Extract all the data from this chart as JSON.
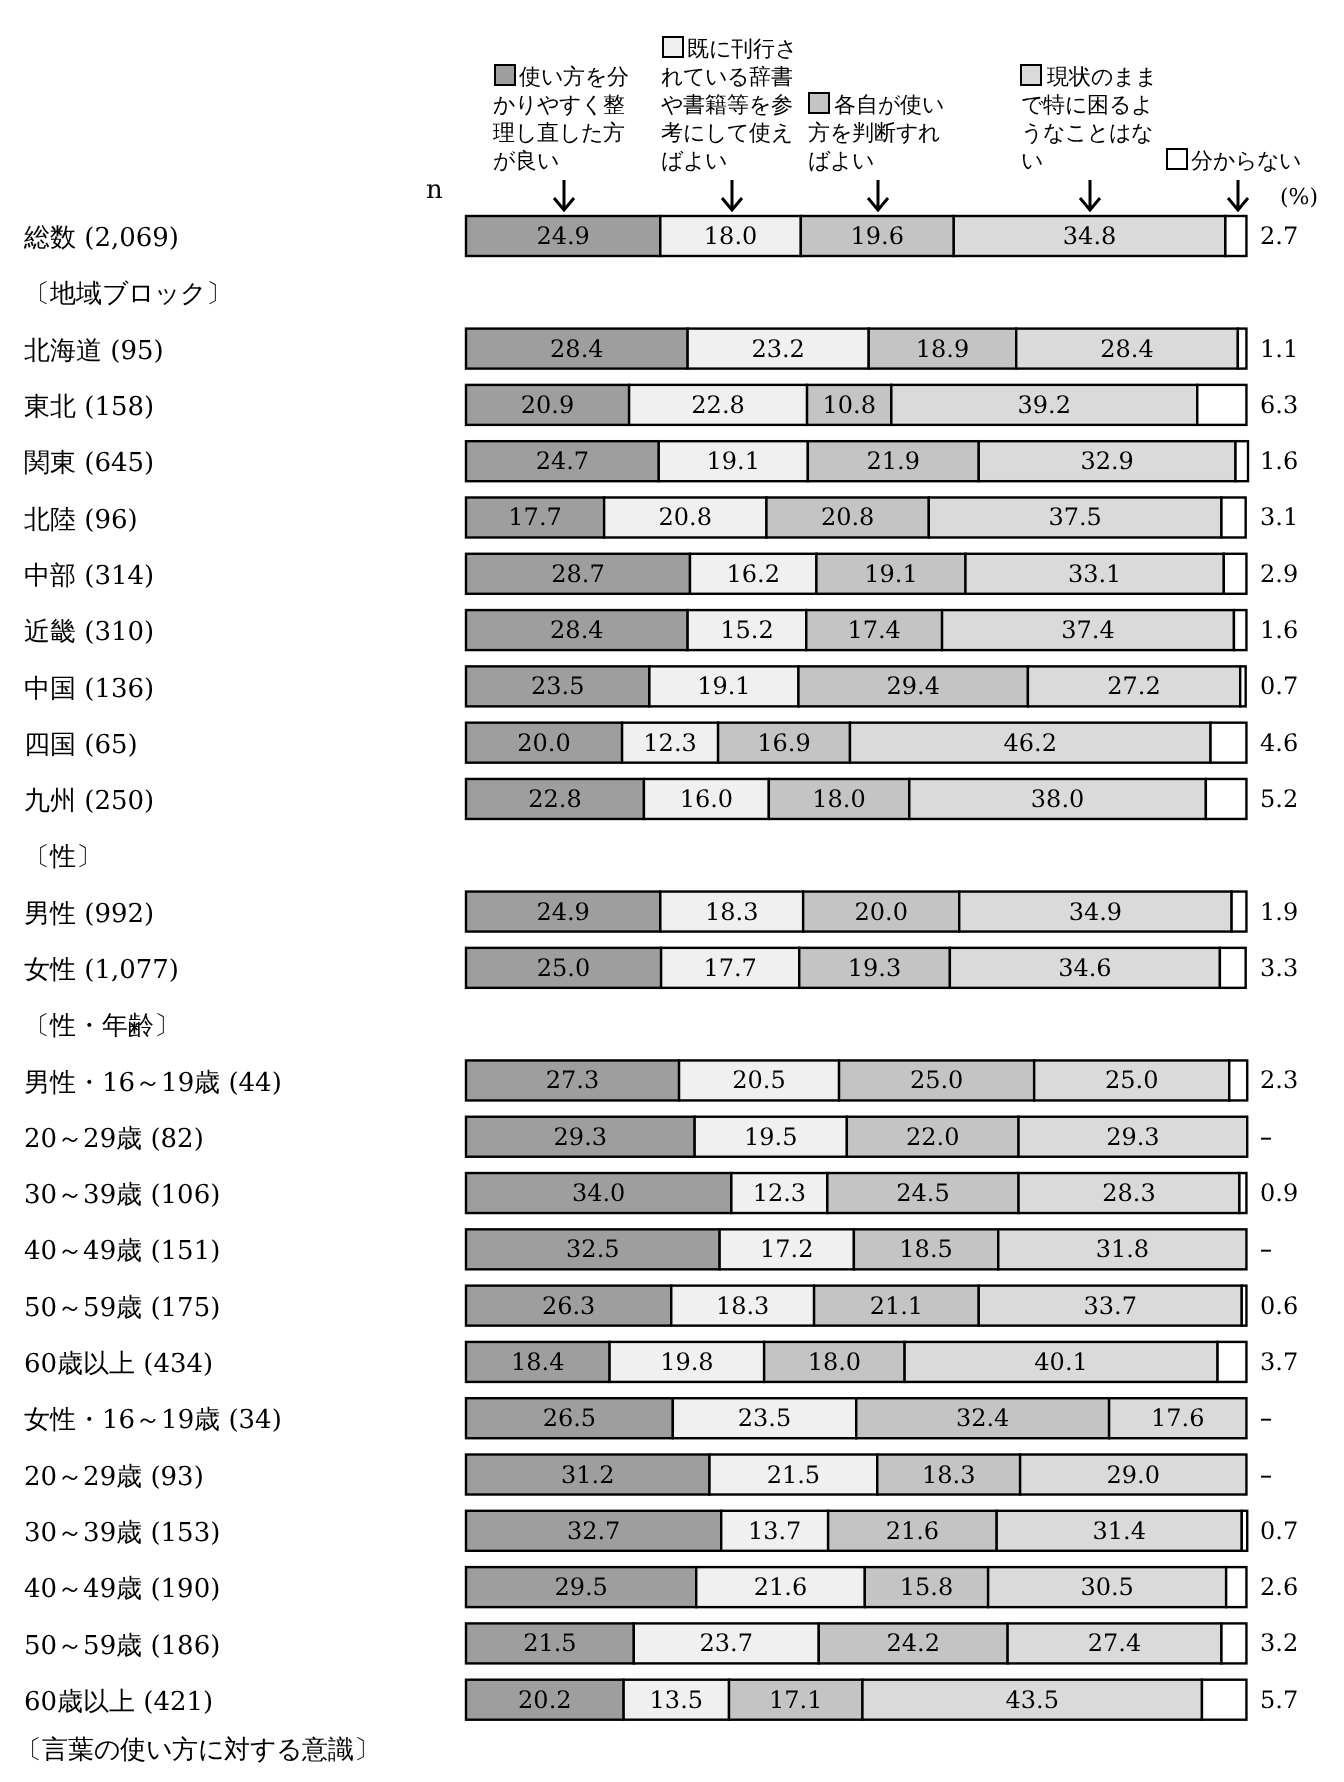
{
  "chart_data": {
    "type": "bar",
    "orientation": "horizontal",
    "stacked": true,
    "title": "〔言葉の使い方に対する意識〕",
    "annotations": [
      "n",
      "(%)"
    ],
    "categories": [
      "総数 (2,069)",
      "〔地域ブロック〕",
      "北海道 (95)",
      "東北 (158)",
      "関東 (645)",
      "北陸 (96)",
      "中部 (314)",
      "近畿 (310)",
      "中国 (136)",
      "四国 (65)",
      "九州 (250)",
      "〔性〕",
      "男性 (992)",
      "女性 (1,077)",
      "〔性・年齢〕",
      "男性・16～19歳 (44)",
      "20～29歳 (82)",
      "30～39歳 (106)",
      "40～49歳 (151)",
      "50～59歳 (175)",
      "60歳以上 (434)",
      "女性・16～19歳 (34)",
      "20～29歳 (93)",
      "30～39歳 (153)",
      "40～49歳 (190)",
      "50～59歳 (186)",
      "60歳以上 (421)"
    ],
    "xlim": [
      0,
      100
    ],
    "legend": "top",
    "series": [
      {
        "name": "使い方を分かりやすく整理し直した方が良い",
        "color": "#9e9e9e",
        "values": [
          24.9,
          null,
          28.4,
          20.9,
          24.7,
          17.7,
          28.7,
          28.4,
          23.5,
          20.0,
          22.8,
          null,
          24.9,
          25.0,
          null,
          27.3,
          29.3,
          34.0,
          32.5,
          26.3,
          18.4,
          26.5,
          31.2,
          32.7,
          29.5,
          21.5,
          20.2
        ],
        "value_labels": [
          "24.9",
          null,
          "28.4",
          "20.9",
          "24.7",
          "17.7",
          "28.7",
          "28.4",
          "23.5",
          "20.0",
          "22.8",
          null,
          "24.9",
          "25.0",
          null,
          "27.3",
          "29.3",
          "34.0",
          "32.5",
          "26.3",
          "18.4",
          "26.5",
          "31.2",
          "32.7",
          "29.5",
          "21.5",
          "20.2"
        ]
      },
      {
        "name": "既に刊行されている辞書や書籍等を参考にして使えばよい",
        "color": "#f0f0f0",
        "values": [
          18.0,
          null,
          23.2,
          22.8,
          19.1,
          20.8,
          16.2,
          15.2,
          19.1,
          12.3,
          16.0,
          null,
          18.3,
          17.7,
          null,
          20.5,
          19.5,
          12.3,
          17.2,
          18.3,
          19.8,
          23.5,
          21.5,
          13.7,
          21.6,
          23.7,
          13.5
        ],
        "value_labels": [
          "18.0",
          null,
          "23.2",
          "22.8",
          "19.1",
          "20.8",
          "16.2",
          "15.2",
          "19.1",
          "12.3",
          "16.0",
          null,
          "18.3",
          "17.7",
          null,
          "20.5",
          "19.5",
          "12.3",
          "17.2",
          "18.3",
          "19.8",
          "23.5",
          "21.5",
          "13.7",
          "21.6",
          "23.7",
          "13.5"
        ]
      },
      {
        "name": "各自が使い方を判断すればよい",
        "color": "#c4c4c4",
        "values": [
          19.6,
          null,
          18.9,
          10.8,
          21.9,
          20.8,
          19.1,
          17.4,
          29.4,
          16.9,
          18.0,
          null,
          20.0,
          19.3,
          null,
          25.0,
          22.0,
          24.5,
          18.5,
          21.1,
          18.0,
          32.4,
          18.3,
          21.6,
          15.8,
          24.2,
          17.1
        ],
        "value_labels": [
          "19.6",
          null,
          "18.9",
          "10.8",
          "21.9",
          "20.8",
          "19.1",
          "17.4",
          "29.4",
          "16.9",
          "18.0",
          null,
          "20.0",
          "19.3",
          null,
          "25.0",
          "22.0",
          "24.5",
          "18.5",
          "21.1",
          "18.0",
          "32.4",
          "18.3",
          "21.6",
          "15.8",
          "24.2",
          "17.1"
        ]
      },
      {
        "name": "現状のままで特に困るようなことはない",
        "color": "#dadada",
        "values": [
          34.8,
          null,
          28.4,
          39.2,
          32.9,
          37.5,
          33.1,
          37.4,
          27.2,
          46.2,
          38.0,
          null,
          34.9,
          34.6,
          null,
          25.0,
          29.3,
          28.3,
          31.8,
          33.7,
          40.1,
          17.6,
          29.0,
          31.4,
          30.5,
          27.4,
          43.5
        ],
        "value_labels": [
          "34.8",
          null,
          "28.4",
          "39.2",
          "32.9",
          "37.5",
          "33.1",
          "37.4",
          "27.2",
          "46.2",
          "38.0",
          null,
          "34.9",
          "34.6",
          null,
          "25.0",
          "29.3",
          "28.3",
          "31.8",
          "33.7",
          "40.1",
          "17.6",
          "29.0",
          "31.4",
          "30.5",
          "27.4",
          "43.5"
        ]
      },
      {
        "name": "分からない",
        "color": "#ffffff",
        "values": [
          2.7,
          null,
          1.1,
          6.3,
          1.6,
          3.1,
          2.9,
          1.6,
          0.7,
          4.6,
          5.2,
          null,
          1.9,
          3.3,
          null,
          2.3,
          null,
          0.9,
          null,
          0.6,
          3.7,
          null,
          null,
          0.7,
          2.6,
          3.2,
          5.7
        ],
        "value_labels": [
          "2.7",
          null,
          "1.1",
          "6.3",
          "1.6",
          "3.1",
          "2.9",
          "1.6",
          "0.7",
          "4.6",
          "5.2",
          null,
          "1.9",
          "3.3",
          null,
          "2.3",
          "–",
          "0.9",
          "–",
          "0.6",
          "3.7",
          "–",
          "–",
          "0.7",
          "2.6",
          "3.2",
          "5.7"
        ]
      }
    ]
  }
}
